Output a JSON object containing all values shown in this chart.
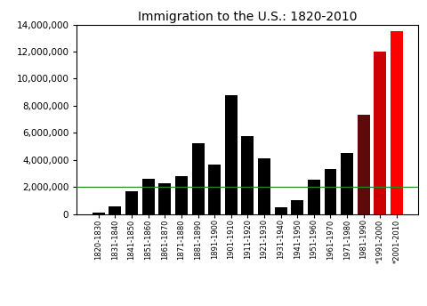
{
  "categories": [
    "1820-1830",
    "1831-1840",
    "1841-1850",
    "1851-1860",
    "1861-1870",
    "1871-1880",
    "1881-1890",
    "1891-1900",
    "1901-1910",
    "1911-1920",
    "1921-1930",
    "1931-1940",
    "1941-1950",
    "1951-1960",
    "1961-1970",
    "1971-1980",
    "1981-1990",
    "*1991-2000",
    "*2001-2010"
  ],
  "values": [
    143439,
    599125,
    1713251,
    2598214,
    2314824,
    2812191,
    5246613,
    3687564,
    8795386,
    5735811,
    4107209,
    528431,
    1035039,
    2515479,
    3321677,
    4493314,
    7338062,
    12000000,
    13500000
  ],
  "bar_colors": [
    "#000000",
    "#000000",
    "#000000",
    "#000000",
    "#000000",
    "#000000",
    "#000000",
    "#000000",
    "#000000",
    "#000000",
    "#000000",
    "#000000",
    "#000000",
    "#000000",
    "#000000",
    "#000000",
    "#5c0a0a",
    "#cc0000",
    "#ff0000"
  ],
  "title": "Immigration to the U.S.: 1820-2010",
  "title_fontsize": 10,
  "ylim": [
    0,
    14000000
  ],
  "yticks": [
    0,
    2000000,
    4000000,
    6000000,
    8000000,
    10000000,
    12000000,
    14000000
  ],
  "hline_y": 2000000,
  "hline_color": "#228B22",
  "background_color": "#ffffff"
}
